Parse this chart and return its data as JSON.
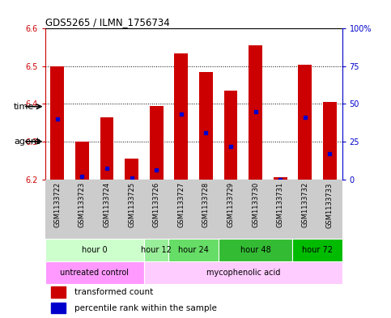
{
  "title": "GDS5265 / ILMN_1756734",
  "samples": [
    "GSM1133722",
    "GSM1133723",
    "GSM1133724",
    "GSM1133725",
    "GSM1133726",
    "GSM1133727",
    "GSM1133728",
    "GSM1133729",
    "GSM1133730",
    "GSM1133731",
    "GSM1133732",
    "GSM1133733"
  ],
  "transformed_counts": [
    6.5,
    6.3,
    6.365,
    6.255,
    6.395,
    6.535,
    6.485,
    6.435,
    6.555,
    6.205,
    6.505,
    6.405
  ],
  "percentile_ranks": [
    40,
    2,
    7,
    1,
    6,
    43,
    31,
    22,
    45,
    0,
    41,
    17
  ],
  "ylim": [
    6.2,
    6.6
  ],
  "yticks_left": [
    6.2,
    6.3,
    6.4,
    6.5,
    6.6
  ],
  "yticks_right": [
    0,
    25,
    50,
    75,
    100
  ],
  "ylabel_left_color": "#cc0000",
  "ylabel_right_color": "#0000cc",
  "bar_color": "#cc0000",
  "blue_marker_color": "#0000cc",
  "grid_color": "#000000",
  "background_color": "#ffffff",
  "plot_bg_color": "#ffffff",
  "sample_label_bg": "#cccccc",
  "time_colors": [
    "#ccffcc",
    "#99ee99",
    "#66dd66",
    "#33bb33",
    "#00bb00"
  ],
  "time_groups": [
    {
      "label": "hour 0",
      "start": 0,
      "end": 4
    },
    {
      "label": "hour 12",
      "start": 4,
      "end": 5
    },
    {
      "label": "hour 24",
      "start": 5,
      "end": 7
    },
    {
      "label": "hour 48",
      "start": 7,
      "end": 10
    },
    {
      "label": "hour 72",
      "start": 10,
      "end": 12
    }
  ],
  "agent_colors": [
    "#ff99ff",
    "#ffccff"
  ],
  "agent_groups": [
    {
      "label": "untreated control",
      "start": 0,
      "end": 4
    },
    {
      "label": "mycophenolic acid",
      "start": 4,
      "end": 12
    }
  ],
  "legend_red_label": "transformed count",
  "legend_blue_label": "percentile rank within the sample",
  "time_label": "time",
  "agent_label": "agent",
  "bar_bottom": 6.2
}
